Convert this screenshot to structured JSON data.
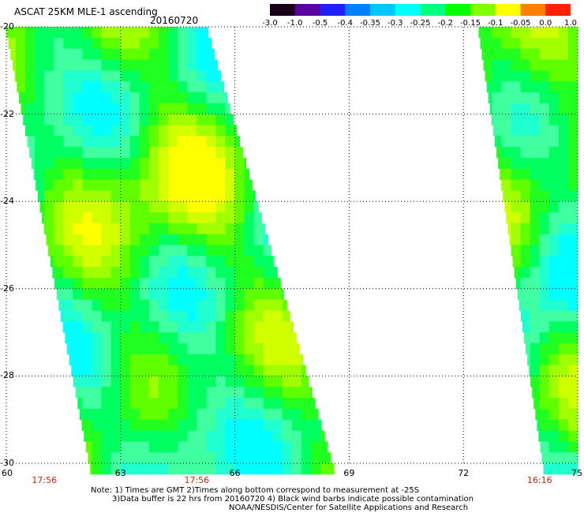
{
  "header": {
    "title": "ASCAT 25KM MLE-1 ascending",
    "date": "20160720"
  },
  "colorbar": {
    "labels": [
      "-3.0",
      "-1.0",
      "-0.5",
      "-0.4",
      "-0.35",
      "-0.3",
      "-0.25",
      "-0.2",
      "-0.15",
      "-0.1",
      "-0.05",
      "0.0",
      "1.0"
    ],
    "colors": [
      "#1a0018",
      "#5a00a0",
      "#2020ff",
      "#0080ff",
      "#00c8ff",
      "#00ffff",
      "#00ff80",
      "#00ff00",
      "#80ff00",
      "#ffff00",
      "#ff8000",
      "#ff2000"
    ]
  },
  "axes": {
    "y_labels": [
      "-20",
      "-22",
      "-24",
      "-26",
      "-28",
      "-30"
    ],
    "x_labels": [
      "60",
      "63",
      "66",
      "69",
      "72",
      "75"
    ],
    "time_labels": [
      {
        "text": "17:56",
        "lon": 61
      },
      {
        "text": "17:56",
        "lon": 65
      },
      {
        "text": "16:16",
        "lon": 74
      }
    ],
    "lon_range": [
      60,
      75
    ],
    "lat_range": [
      -30,
      -20
    ]
  },
  "swaths": [
    {
      "name": "left-swath",
      "lat_top": -20,
      "lat_bottom": -30,
      "west_top": 60,
      "east_top": 65.3,
      "west_bottom": 62.2,
      "east_bottom": 68.6
    },
    {
      "name": "right-swath",
      "lat_top": -20,
      "lat_bottom": -30,
      "west_top": 72.4,
      "east_top": 75,
      "west_bottom": 74.1,
      "east_bottom": 75
    }
  ],
  "notes": {
    "line1": "Note: 1) Times are GMT 2)Times along bottom correspond to measurement at -25S",
    "line2": "3)Data buffer is 22 hrs from 20160720 4) Black wind barbs indicate possible contamination",
    "line3": "NOAA/NESDIS/Center for Satellite Applications and Research"
  }
}
